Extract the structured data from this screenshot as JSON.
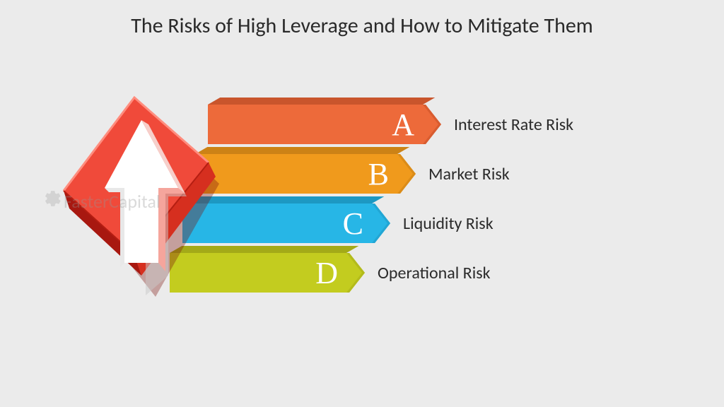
{
  "title": {
    "text": "The Risks of High Leverage and How to Mitigate Them",
    "fontsize": 30,
    "color": "#2a2a2a"
  },
  "background_color": "#ebebeb",
  "cube": {
    "face_light": "#f04a3a",
    "face_mid": "#d62f1f",
    "face_dark": "#a81810",
    "arrow_highlight": "#ffffff",
    "arrow_mid": "#f5a59c"
  },
  "watermark": {
    "text": "FasterCapital",
    "color": "rgba(150,150,150,0.35)",
    "fontsize": 26
  },
  "bars": {
    "width_start": 330,
    "width_step": -18,
    "height": 56,
    "gap": 14,
    "top_strip_height": 10,
    "letter_fontsize": 44,
    "label_fontsize": 24,
    "items": [
      {
        "letter": "A",
        "label": "Interest Rate Risk",
        "color": "#ed6a3a",
        "color_dark": "#c9552c",
        "color_end": "#d85c30"
      },
      {
        "letter": "B",
        "label": "Market Risk",
        "color": "#f09a1c",
        "color_dark": "#cc8216",
        "color_end": "#db8c18"
      },
      {
        "letter": "C",
        "label": "Liquidity Risk",
        "color": "#27b6e6",
        "color_dark": "#1d98c2",
        "color_end": "#22a6d4"
      },
      {
        "letter": "D",
        "label": "Operational Risk",
        "color": "#c3cc1f",
        "color_dark": "#a3aa18",
        "color_end": "#b3bb1c"
      }
    ]
  }
}
